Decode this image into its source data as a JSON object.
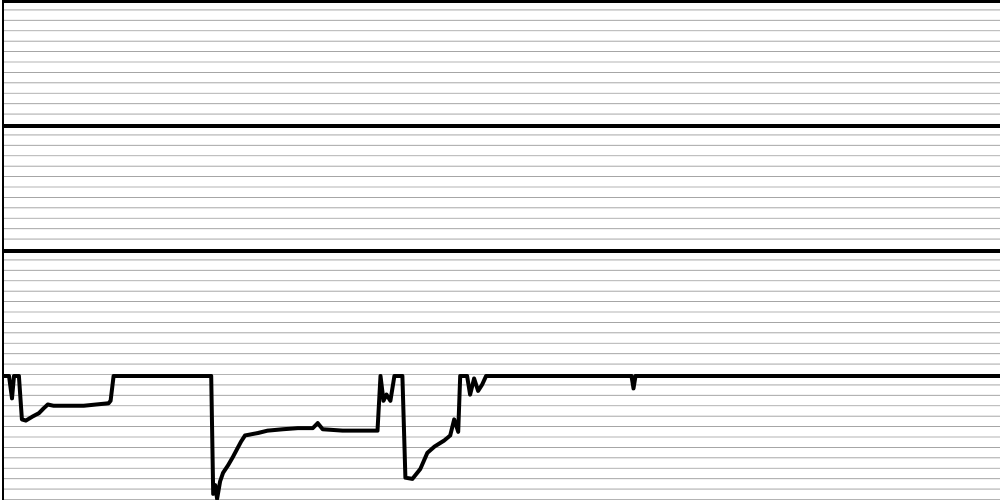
{
  "chart_data": {
    "type": "line",
    "title": "",
    "xlabel": "",
    "ylabel": "",
    "grid": true,
    "legend": "none",
    "panels": [
      {
        "name": "",
        "type": "line",
        "x": [
          0,
          100
        ],
        "ylim": [
          0,
          1
        ],
        "series": [
          {
            "name": "",
            "color": "#000000",
            "points": [
              [
                0,
                1
              ],
              [
                100,
                1
              ]
            ]
          }
        ]
      },
      {
        "name": "",
        "type": "line",
        "x": [
          0,
          100
        ],
        "ylim": [
          0,
          1
        ],
        "series": [
          {
            "name": "",
            "color": "#000000",
            "points": [
              [
                0,
                1
              ],
              [
                100,
                1
              ]
            ]
          }
        ]
      },
      {
        "name": "",
        "type": "line",
        "x": [
          0,
          100
        ],
        "ylim": [
          0,
          1
        ],
        "series": [
          {
            "name": "",
            "color": "#000000",
            "points": [
              [
                0,
                1
              ],
              [
                100,
                1
              ]
            ]
          }
        ]
      },
      {
        "name": "",
        "type": "line",
        "xlim": [
          0,
          100
        ],
        "ylim": [
          0,
          1
        ],
        "series": [
          {
            "name": "",
            "color": "#000000",
            "points": [
              [
                0,
                1
              ],
              [
                0.5,
                1
              ],
              [
                0.8,
                0.82
              ],
              [
                1.0,
                1
              ],
              [
                1.5,
                1
              ],
              [
                1.8,
                0.65
              ],
              [
                2.2,
                0.64
              ],
              [
                2.8,
                0.67
              ],
              [
                3.5,
                0.7
              ],
              [
                4.0,
                0.74
              ],
              [
                4.4,
                0.77
              ],
              [
                5.0,
                0.76
              ],
              [
                6.0,
                0.76
              ],
              [
                8.0,
                0.76
              ],
              [
                10.5,
                0.78
              ],
              [
                10.7,
                0.8
              ],
              [
                11.0,
                1
              ],
              [
                12,
                1
              ],
              [
                15,
                1
              ],
              [
                18,
                1
              ],
              [
                20.8,
                1
              ],
              [
                21.0,
                0.05
              ],
              [
                21.2,
                0.12
              ],
              [
                21.4,
                0.01
              ],
              [
                21.7,
                0.15
              ],
              [
                22.0,
                0.22
              ],
              [
                22.5,
                0.28
              ],
              [
                23.0,
                0.35
              ],
              [
                23.8,
                0.47
              ],
              [
                24.2,
                0.52
              ],
              [
                24.8,
                0.53
              ],
              [
                25.5,
                0.54
              ],
              [
                26.5,
                0.56
              ],
              [
                28.0,
                0.57
              ],
              [
                29.5,
                0.58
              ],
              [
                31.0,
                0.58
              ],
              [
                31.5,
                0.62
              ],
              [
                32.0,
                0.57
              ],
              [
                34.0,
                0.56
              ],
              [
                36.0,
                0.56
              ],
              [
                37.5,
                0.56
              ],
              [
                37.8,
                1
              ],
              [
                38.1,
                0.8
              ],
              [
                38.4,
                0.85
              ],
              [
                38.8,
                0.8
              ],
              [
                39.2,
                1
              ],
              [
                40.0,
                1
              ],
              [
                40.3,
                0.18
              ],
              [
                41.0,
                0.17
              ],
              [
                41.8,
                0.25
              ],
              [
                42.5,
                0.38
              ],
              [
                43.2,
                0.43
              ],
              [
                44.2,
                0.48
              ],
              [
                44.8,
                0.52
              ],
              [
                45.2,
                0.65
              ],
              [
                45.6,
                0.55
              ],
              [
                45.8,
                1
              ],
              [
                46.5,
                1
              ],
              [
                46.8,
                0.85
              ],
              [
                47.2,
                0.98
              ],
              [
                47.6,
                0.88
              ],
              [
                48.0,
                0.93
              ],
              [
                48.4,
                1
              ],
              [
                50,
                1
              ],
              [
                60,
                1
              ],
              [
                63.0,
                1
              ],
              [
                63.2,
                0.9
              ],
              [
                63.4,
                1
              ],
              [
                75,
                1
              ],
              [
                90,
                1
              ],
              [
                100,
                1
              ]
            ]
          }
        ]
      }
    ]
  }
}
